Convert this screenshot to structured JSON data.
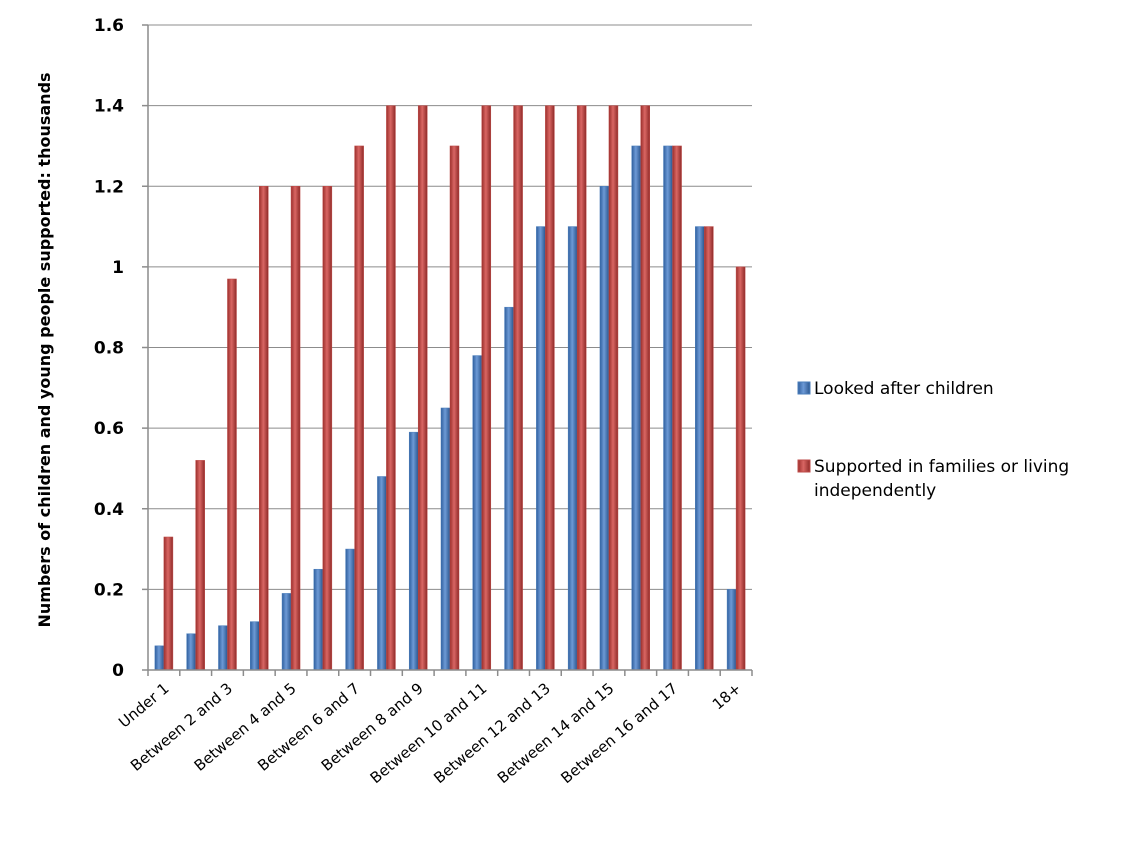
{
  "chart_data": {
    "type": "bar",
    "title": "",
    "xlabel": "",
    "ylabel": "Numbers of children and young people  supported: thousands",
    "ylim": [
      0,
      1.6
    ],
    "yticks": [
      "0",
      "0.2",
      "0.4",
      "0.6",
      "0.8",
      "1",
      "1.2",
      "1.4",
      "1.6"
    ],
    "grid": true,
    "legend_position": "right",
    "categories": [
      "Under 1",
      "",
      "Between 2 and 3",
      "",
      "Between 4 and 5",
      "",
      "Between 6 and 7",
      "",
      "Between 8 and 9",
      "",
      "Between 10 and 11",
      "",
      "Between 12 and 13",
      "",
      "Between 14 and 15",
      "",
      "Between 16 and 17",
      "",
      "18+"
    ],
    "series": [
      {
        "name": "Looked after children",
        "color": "#4a7ebb",
        "values": [
          0.06,
          0.09,
          0.11,
          0.12,
          0.19,
          0.25,
          0.3,
          0.48,
          0.59,
          0.65,
          0.78,
          0.9,
          1.1,
          1.1,
          1.2,
          1.3,
          1.3,
          1.1,
          0.2
        ]
      },
      {
        "name": "Supported in families or living independently",
        "color": "#be4b48",
        "values": [
          0.33,
          0.52,
          0.97,
          1.2,
          1.2,
          1.2,
          1.3,
          1.4,
          1.4,
          1.3,
          1.4,
          1.4,
          1.4,
          1.4,
          1.4,
          1.4,
          1.3,
          1.1,
          1.0
        ]
      }
    ]
  }
}
